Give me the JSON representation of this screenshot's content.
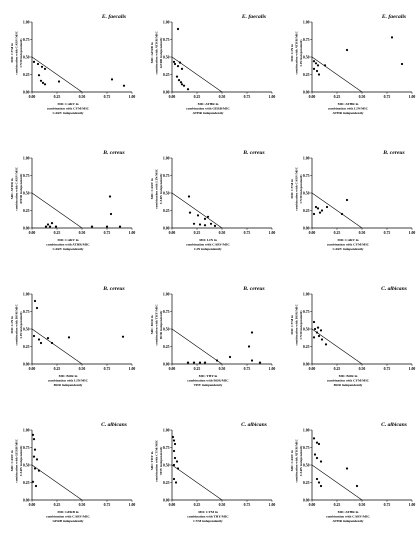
{
  "figure": {
    "chart_data": [
      {
        "type": "scatter",
        "title": "E. faecalis",
        "xlabel": [
          "MIC CARV in",
          "combination with CYM/MIC",
          "CARV independently"
        ],
        "ylabel": [
          "MIC CYM in",
          "combination with CARV/MIC",
          "CYM independently"
        ],
        "xlim": [
          0,
          1
        ],
        "ylim": [
          0,
          1
        ],
        "xticks": [
          "0.00",
          "0.25",
          "0.50",
          "0.75",
          "1.00"
        ],
        "yticks": [
          "0.00",
          "0.25",
          "0.50",
          "0.75",
          "1.00"
        ],
        "reference_line": [
          [
            0,
            0.5
          ],
          [
            0.5,
            0
          ]
        ],
        "points": [
          [
            0.02,
            0.43
          ],
          [
            0.06,
            0.4
          ],
          [
            0.1,
            0.36
          ],
          [
            0.13,
            0.33
          ],
          [
            0.07,
            0.24
          ],
          [
            0.09,
            0.16
          ],
          [
            0.11,
            0.13
          ],
          [
            0.13,
            0.11
          ],
          [
            0.27,
            0.15
          ],
          [
            0.8,
            0.18
          ],
          [
            0.92,
            0.09
          ]
        ]
      },
      {
        "type": "scatter",
        "title": "E. faecalis",
        "xlabel": [
          "MIC ATHR in",
          "combination with GERB/MIC",
          "ATHR independently"
        ],
        "ylabel": [
          "MIC GERB in",
          "combination with ATHR/MIC",
          "GERB independently"
        ],
        "xlim": [
          0,
          1
        ],
        "ylim": [
          0,
          1
        ],
        "xticks": [
          "0.00",
          "0.25",
          "0.50",
          "0.75",
          "1.00"
        ],
        "yticks": [
          "0.00",
          "0.25",
          "0.50",
          "0.75",
          "1.00"
        ],
        "reference_line": [
          [
            0,
            0.5
          ],
          [
            0.5,
            0
          ]
        ],
        "points": [
          [
            0.06,
            0.9
          ],
          [
            0.02,
            0.43
          ],
          [
            0.03,
            0.4
          ],
          [
            0.06,
            0.37
          ],
          [
            0.1,
            0.33
          ],
          [
            0.05,
            0.22
          ],
          [
            0.07,
            0.17
          ],
          [
            0.09,
            0.14
          ],
          [
            0.1,
            0.11
          ],
          [
            0.12,
            0.09
          ],
          [
            0.16,
            0.04
          ],
          [
            0.08,
            0.42
          ]
        ]
      },
      {
        "type": "scatter",
        "title": "E. faecalis",
        "xlabel": [
          "MIC ATHR in",
          "combination with LIN/MIC",
          "ATHR independently"
        ],
        "ylabel": [
          "MIC LIN in",
          "combination with ATHR/MIC",
          "LIN independently"
        ],
        "xlim": [
          0,
          1
        ],
        "ylim": [
          0,
          1
        ],
        "xticks": [
          "0.00",
          "0.25",
          "0.50",
          "0.75",
          "1.00"
        ],
        "yticks": [
          "0.00",
          "0.25",
          "0.50",
          "0.75",
          "1.00"
        ],
        "reference_line": [
          [
            0,
            0.5
          ],
          [
            0.5,
            0
          ]
        ],
        "points": [
          [
            0.02,
            0.44
          ],
          [
            0.04,
            0.41
          ],
          [
            0.06,
            0.38
          ],
          [
            0.02,
            0.33
          ],
          [
            0.05,
            0.3
          ],
          [
            0.07,
            0.25
          ],
          [
            0.13,
            0.38
          ],
          [
            0.35,
            0.6
          ],
          [
            0.8,
            0.78
          ],
          [
            0.9,
            0.4
          ]
        ]
      },
      {
        "type": "scatter",
        "title": "B. cereus",
        "xlabel": [
          "MIC CARV in",
          "combination with ATHR/MIC",
          "CARV independently"
        ],
        "ylabel": [
          "MIC ATHR in",
          "combination with CARV/MIC",
          "ATHR independently"
        ],
        "xlim": [
          0,
          1
        ],
        "ylim": [
          0,
          1
        ],
        "xticks": [
          "0.00",
          "0.25",
          "0.50",
          "0.75",
          "1.00"
        ],
        "yticks": [
          "0.00",
          "0.25",
          "0.50",
          "0.75",
          "1.00"
        ],
        "reference_line": [
          [
            0,
            0.5
          ],
          [
            0.5,
            0
          ]
        ],
        "points": [
          [
            0.14,
            0.02
          ],
          [
            0.16,
            0.05
          ],
          [
            0.18,
            0.02
          ],
          [
            0.2,
            0.07
          ],
          [
            0.24,
            0.02
          ],
          [
            0.6,
            0.02
          ],
          [
            0.75,
            0.02
          ],
          [
            0.79,
            0.2
          ],
          [
            0.78,
            0.45
          ],
          [
            0.88,
            0.02
          ]
        ]
      },
      {
        "type": "scatter",
        "title": "B. cereus",
        "xlabel": [
          "MIC LIN in",
          "combination with CARV/MIC",
          "LIN independently"
        ],
        "ylabel": [
          "MIC CARV in",
          "combination with LIN/MIC",
          "CARV independently"
        ],
        "xlim": [
          0,
          1
        ],
        "ylim": [
          0,
          1
        ],
        "xticks": [
          "0.00",
          "0.25",
          "0.50",
          "0.75",
          "1.00"
        ],
        "yticks": [
          "0.00",
          "0.25",
          "0.50",
          "0.75",
          "1.00"
        ],
        "reference_line": [
          [
            0,
            0.5
          ],
          [
            0.5,
            0
          ]
        ],
        "points": [
          [
            0.17,
            0.45
          ],
          [
            0.18,
            0.22
          ],
          [
            0.22,
            0.06
          ],
          [
            0.26,
            0.18
          ],
          [
            0.28,
            0.05
          ],
          [
            0.33,
            0.13
          ],
          [
            0.33,
            0.04
          ],
          [
            0.36,
            0.16
          ],
          [
            0.39,
            0.06
          ],
          [
            0.43,
            0.03
          ]
        ]
      },
      {
        "type": "scatter",
        "title": "B. cereus",
        "xlabel": [
          "MIC CARV in",
          "combination with CYM/MIC",
          "CARV independently"
        ],
        "ylabel": [
          "MIC CYM in",
          "combination with CARV/MIC",
          "CYM independently"
        ],
        "xlim": [
          0,
          1
        ],
        "ylim": [
          0,
          1
        ],
        "xticks": [
          "0.00",
          "0.25",
          "0.50",
          "0.75",
          "1.00"
        ],
        "yticks": [
          "0.00",
          "0.25",
          "0.50",
          "0.75",
          "1.00"
        ],
        "reference_line": [
          [
            0,
            0.5
          ],
          [
            0.5,
            0
          ]
        ],
        "points": [
          [
            0.02,
            0.2
          ],
          [
            0.04,
            0.3
          ],
          [
            0.06,
            0.28
          ],
          [
            0.08,
            0.22
          ],
          [
            0.1,
            0.25
          ],
          [
            0.15,
            0.3
          ],
          [
            0.3,
            0.2
          ],
          [
            0.35,
            0.4
          ]
        ]
      },
      {
        "type": "scatter",
        "title": "B. cereus",
        "xlabel": [
          "MIC BOR in",
          "combination with LIN/MIC",
          "BOR independently"
        ],
        "ylabel": [
          "MIC LIN in",
          "combination with BOR/MIC",
          "LIN independently"
        ],
        "xlim": [
          0,
          1
        ],
        "ylim": [
          0,
          1
        ],
        "xticks": [
          "0.00",
          "0.25",
          "0.50",
          "0.75",
          "1.00"
        ],
        "yticks": [
          "0.00",
          "0.25",
          "0.50",
          "0.75",
          "1.00"
        ],
        "reference_line": [
          [
            0,
            0.5
          ],
          [
            0.5,
            0
          ]
        ],
        "points": [
          [
            0.02,
            0.4
          ],
          [
            0.03,
            0.9
          ],
          [
            0.05,
            0.8
          ],
          [
            0.07,
            0.35
          ],
          [
            0.09,
            0.3
          ],
          [
            0.16,
            0.37
          ],
          [
            0.2,
            0.3
          ],
          [
            0.37,
            0.38
          ],
          [
            0.91,
            0.39
          ]
        ]
      },
      {
        "type": "scatter",
        "title": "B. cereus",
        "xlabel": [
          "MIC THY in",
          "combination with BOR/MIC",
          "THY independently"
        ],
        "ylabel": [
          "MIC BOR in",
          "combination with THY/MIC",
          "BOR independently"
        ],
        "xlim": [
          0,
          1
        ],
        "ylim": [
          0,
          1
        ],
        "xticks": [
          "0.00",
          "0.25",
          "0.50",
          "0.75",
          "1.00"
        ],
        "yticks": [
          "0.00",
          "0.25",
          "0.50",
          "0.75",
          "1.00"
        ],
        "reference_line": [
          [
            0,
            0.5
          ],
          [
            0.5,
            0
          ]
        ],
        "points": [
          [
            0.16,
            0.02
          ],
          [
            0.22,
            0.02
          ],
          [
            0.28,
            0.02
          ],
          [
            0.33,
            0.02
          ],
          [
            0.45,
            0.05
          ],
          [
            0.58,
            0.1
          ],
          [
            0.77,
            0.25
          ],
          [
            0.8,
            0.45
          ],
          [
            0.8,
            0.05
          ],
          [
            0.88,
            0.02
          ]
        ]
      },
      {
        "type": "scatter",
        "title": "C. albicans",
        "xlabel": [
          "MIC BOR in",
          "combination with CYM/MIC",
          "BOR independently"
        ],
        "ylabel": [
          "MIC CYM in",
          "combination with BOR/MIC",
          "CYM independently"
        ],
        "xlim": [
          0,
          1
        ],
        "ylim": [
          0,
          1
        ],
        "xticks": [
          "0.00",
          "0.25",
          "0.50",
          "0.75",
          "1.00"
        ],
        "yticks": [
          "0.00",
          "0.25",
          "0.50",
          "0.75",
          "1.00"
        ],
        "reference_line": [
          [
            0,
            0.5
          ],
          [
            0.5,
            0
          ]
        ],
        "points": [
          [
            0.02,
            0.6
          ],
          [
            0.03,
            0.5
          ],
          [
            0.05,
            0.45
          ],
          [
            0.07,
            0.4
          ],
          [
            0.1,
            0.35
          ],
          [
            0.14,
            0.28
          ],
          [
            0.02,
            0.38
          ],
          [
            0.06,
            0.52
          ],
          [
            0.09,
            0.48
          ]
        ]
      },
      {
        "type": "scatter",
        "title": "C. albicans",
        "xlabel": [
          "MIC GERB in",
          "combination with CARV/MIC",
          "GERB independently"
        ],
        "ylabel": [
          "MIC CARV in",
          "combination with GERB/MIC",
          "CARV independently"
        ],
        "xlim": [
          0,
          1
        ],
        "ylim": [
          0,
          1
        ],
        "xticks": [
          "0.00",
          "0.25",
          "0.50",
          "0.75",
          "1.00"
        ],
        "yticks": [
          "0.00",
          "0.25",
          "0.50",
          "0.75",
          "1.00"
        ],
        "reference_line": [
          [
            0,
            0.5
          ],
          [
            0.5,
            0
          ]
        ],
        "points": [
          [
            0.01,
            0.93
          ],
          [
            0.02,
            0.87
          ],
          [
            0.03,
            0.72
          ],
          [
            0.02,
            0.62
          ],
          [
            0.05,
            0.58
          ],
          [
            0.03,
            0.45
          ],
          [
            0.07,
            0.42
          ],
          [
            0.01,
            0.26
          ],
          [
            0.04,
            0.2
          ]
        ]
      },
      {
        "type": "scatter",
        "title": "C. albicans",
        "xlabel": [
          "MIC CYM in",
          "combination with THY/MIC",
          "CYM independently"
        ],
        "ylabel": [
          "MIC THY in",
          "combination with CYM/MIC",
          "THY independently"
        ],
        "xlim": [
          0,
          1
        ],
        "ylim": [
          0,
          1
        ],
        "xticks": [
          "0.00",
          "0.25",
          "0.50",
          "0.75",
          "1.00"
        ],
        "yticks": [
          "0.00",
          "0.25",
          "0.50",
          "0.75",
          "1.00"
        ],
        "reference_line": [
          [
            0,
            0.5
          ],
          [
            0.5,
            0
          ]
        ],
        "points": [
          [
            0.01,
            0.9
          ],
          [
            0.02,
            0.85
          ],
          [
            0.03,
            0.8
          ],
          [
            0.02,
            0.7
          ],
          [
            0.03,
            0.6
          ],
          [
            0.05,
            0.55
          ],
          [
            0.02,
            0.5
          ],
          [
            0.06,
            0.45
          ],
          [
            0.02,
            0.3
          ],
          [
            0.04,
            0.25
          ]
        ]
      },
      {
        "type": "scatter",
        "title": "C. albicans",
        "xlabel": [
          "MIC ATHR in",
          "combination with CARV/MIC",
          "ATHR independently"
        ],
        "ylabel": [
          "MIC CARV in",
          "combination with ATHR/MIC",
          "CARV independently"
        ],
        "xlim": [
          0,
          1
        ],
        "ylim": [
          0,
          1
        ],
        "xticks": [
          "0.00",
          "0.25",
          "0.50",
          "0.75",
          "1.00"
        ],
        "yticks": [
          "0.00",
          "0.25",
          "0.50",
          "0.75",
          "1.00"
        ],
        "reference_line": [
          [
            0,
            0.5
          ],
          [
            0.5,
            0
          ]
        ],
        "points": [
          [
            0.02,
            0.88
          ],
          [
            0.05,
            0.82
          ],
          [
            0.07,
            0.8
          ],
          [
            0.03,
            0.65
          ],
          [
            0.05,
            0.6
          ],
          [
            0.09,
            0.55
          ],
          [
            0.05,
            0.3
          ],
          [
            0.07,
            0.25
          ],
          [
            0.09,
            0.2
          ],
          [
            0.35,
            0.45
          ],
          [
            0.45,
            0.2
          ]
        ]
      }
    ]
  }
}
